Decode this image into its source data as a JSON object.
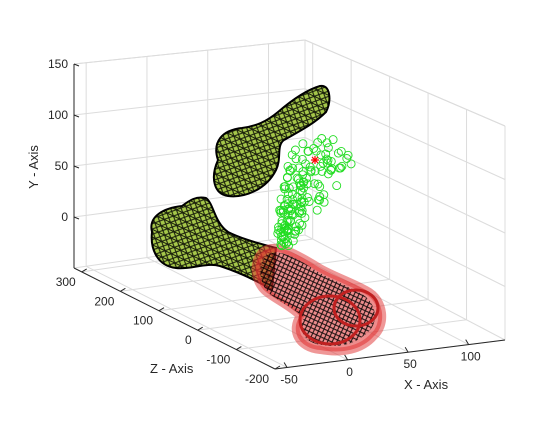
{
  "chart_data": {
    "type": "scatter",
    "title": "",
    "xlabel": "X - Axis",
    "ylabel": "Y - Axis",
    "zlabel": "Z - Axis",
    "xlim": [
      -60,
      130
    ],
    "ylim": [
      -50,
      150
    ],
    "zlim": [
      -200,
      320
    ],
    "x_ticks": [
      "-50",
      "0",
      "50",
      "100"
    ],
    "y_ticks": [
      "0",
      "50",
      "100",
      "150"
    ],
    "z_ticks": [
      "-200",
      "-100",
      "0",
      "100",
      "200",
      "300"
    ],
    "grid": true,
    "view": "3d",
    "colors": {
      "bone_fill": "#a6c84a",
      "bone_mesh": "#000000",
      "highlight": "#e03030",
      "markers": "#22dd22",
      "marker_center": "#ff0000",
      "grid": "#dcdcdc",
      "axis": "#262626"
    }
  }
}
